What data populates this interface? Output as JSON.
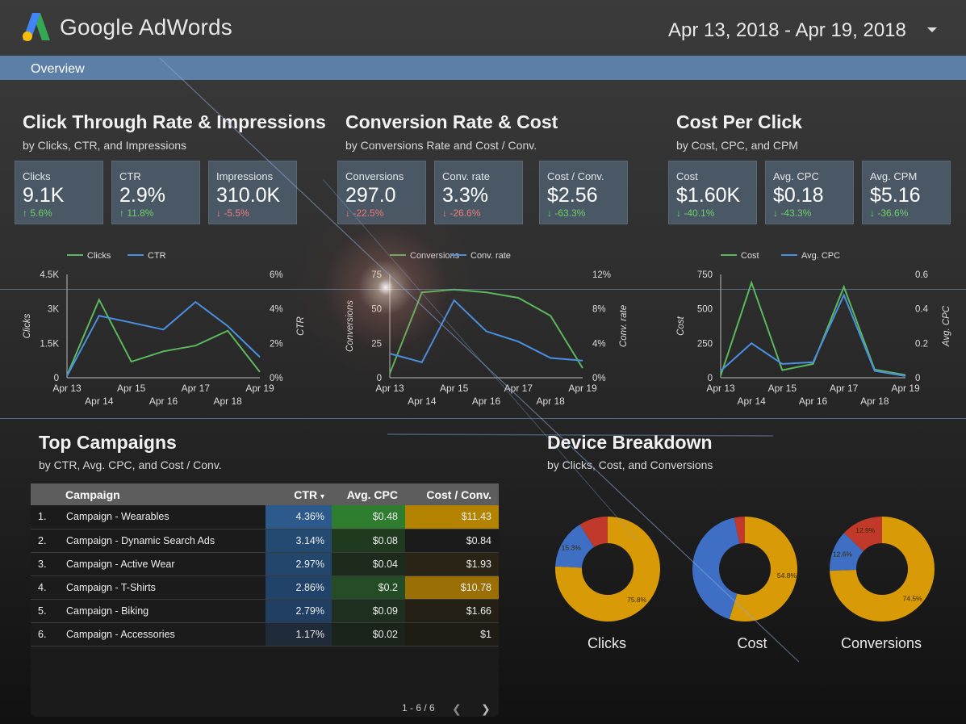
{
  "header": {
    "brand": "Google AdWords",
    "date_range": "Apr 13, 2018 - Apr 19, 2018"
  },
  "nav": {
    "tab": "Overview"
  },
  "sections": {
    "ctr": {
      "title": "Click Through Rate & Impressions",
      "subtitle": "by Clicks, CTR, and Impressions"
    },
    "conv": {
      "title": "Conversion Rate & Cost",
      "subtitle": "by Conversions Rate and Cost / Conv."
    },
    "cpc": {
      "title": "Cost Per Click",
      "subtitle": "by Cost, CPC, and CPM"
    },
    "campaigns": {
      "title": "Top Campaigns",
      "subtitle": "by CTR, Avg. CPC, and Cost / Conv."
    },
    "device": {
      "title": "Device Breakdown",
      "subtitle": "by Clicks, Cost, and Conversions"
    }
  },
  "kpis": [
    {
      "label": "Clicks",
      "value": "9.1K",
      "change": "5.6%",
      "dir": "up"
    },
    {
      "label": "CTR",
      "value": "2.9%",
      "change": "11.8%",
      "dir": "up"
    },
    {
      "label": "Impressions",
      "value": "310.0K",
      "change": "-5.5%",
      "dir": "down"
    },
    {
      "label": "Conversions",
      "value": "297.0",
      "change": "-22.5%",
      "dir": "down"
    },
    {
      "label": "Conv. rate",
      "value": "3.3%",
      "change": "-26.6%",
      "dir": "down"
    },
    {
      "label": "Cost / Conv.",
      "value": "$2.56",
      "change": "-63.3%",
      "dir": "good"
    },
    {
      "label": "Cost",
      "value": "$1.60K",
      "change": "-40.1%",
      "dir": "good"
    },
    {
      "label": "Avg. CPC",
      "value": "$0.18",
      "change": "-43.3%",
      "dir": "good"
    },
    {
      "label": "Avg. CPM",
      "value": "$5.16",
      "change": "-36.6%",
      "dir": "good"
    }
  ],
  "chart_data": [
    {
      "type": "line",
      "x": [
        "Apr 13",
        "Apr 14",
        "Apr 15",
        "Apr 16",
        "Apr 17",
        "Apr 18",
        "Apr 19"
      ],
      "series": [
        {
          "name": "Clicks",
          "axis": "left",
          "color": "#5cb85c",
          "values": [
            100,
            3400,
            700,
            1150,
            1400,
            2050,
            250
          ]
        },
        {
          "name": "CTR",
          "axis": "right",
          "color": "#4a90e2",
          "values": [
            0.1,
            3.6,
            3.2,
            2.8,
            4.4,
            3.0,
            1.2
          ]
        }
      ],
      "ylabel": "Clicks",
      "ylim": [
        0,
        4500
      ],
      "yticks": [
        "0",
        "1.5K",
        "3K",
        "4.5K"
      ],
      "y2label": "CTR",
      "y2lim": [
        0,
        6
      ],
      "y2ticks": [
        "0%",
        "2%",
        "4%",
        "6%"
      ]
    },
    {
      "type": "line",
      "x": [
        "Apr 13",
        "Apr 14",
        "Apr 15",
        "Apr 16",
        "Apr 17",
        "Apr 18",
        "Apr 19"
      ],
      "series": [
        {
          "name": "Conversions",
          "axis": "left",
          "color": "#5cb85c",
          "values": [
            3,
            62,
            64,
            62,
            58,
            45,
            7
          ]
        },
        {
          "name": "Conv. rate",
          "axis": "right",
          "color": "#4a90e2",
          "values": [
            2.8,
            1.8,
            9.0,
            5.4,
            4.2,
            2.3,
            2.0
          ]
        }
      ],
      "ylabel": "Conversions",
      "ylim": [
        0,
        75
      ],
      "yticks": [
        "0",
        "25",
        "50",
        "75"
      ],
      "y2label": "Conv. rate",
      "y2lim": [
        0,
        12
      ],
      "y2ticks": [
        "0%",
        "4%",
        "8%",
        "12%"
      ]
    },
    {
      "type": "line",
      "x": [
        "Apr 13",
        "Apr 14",
        "Apr 15",
        "Apr 16",
        "Apr 17",
        "Apr 18",
        "Apr 19"
      ],
      "series": [
        {
          "name": "Cost",
          "axis": "left",
          "color": "#5cb85c",
          "values": [
            15,
            690,
            55,
            100,
            660,
            60,
            20
          ]
        },
        {
          "name": "Avg. CPC",
          "axis": "right",
          "color": "#4a90e2",
          "values": [
            0.04,
            0.2,
            0.08,
            0.09,
            0.48,
            0.04,
            0.01
          ]
        }
      ],
      "ylabel": "Cost",
      "ylim": [
        0,
        750
      ],
      "yticks": [
        "0",
        "250",
        "500",
        "750"
      ],
      "y2label": "Avg. CPC",
      "y2lim": [
        0,
        0.6
      ],
      "y2ticks": [
        "0",
        "0.2",
        "0.4",
        "0.6"
      ]
    },
    {
      "type": "pie",
      "name": "Clicks",
      "slices": [
        {
          "value": 75.8,
          "color": "#d89a06",
          "label": "75.8%"
        },
        {
          "value": 15.3,
          "color": "#3e6fc4",
          "label": "15.3%"
        },
        {
          "value": 8.9,
          "color": "#c0392b",
          "label": ""
        }
      ]
    },
    {
      "type": "pie",
      "name": "Cost",
      "slices": [
        {
          "value": 54.8,
          "color": "#d89a06",
          "label": "54.8%"
        },
        {
          "value": 41.9,
          "color": "#3e6fc4",
          "label": ""
        },
        {
          "value": 3.3,
          "color": "#c0392b",
          "label": ""
        }
      ]
    },
    {
      "type": "pie",
      "name": "Conversions",
      "slices": [
        {
          "value": 74.5,
          "color": "#d89a06",
          "label": "74.5%"
        },
        {
          "value": 12.6,
          "color": "#3e6fc4",
          "label": "12.6%"
        },
        {
          "value": 12.9,
          "color": "#c0392b",
          "label": "12.9%"
        }
      ]
    }
  ],
  "campaign_table": {
    "headers": {
      "campaign": "Campaign",
      "ctr": "CTR",
      "cpc": "Avg. CPC",
      "cost_conv": "Cost / Conv.",
      "sort_indicator": "▾"
    },
    "rows": [
      {
        "num": "1.",
        "campaign": "Campaign - Wearables",
        "ctr": "4.36%",
        "cpc": "$0.48",
        "cost_conv": "$11.43",
        "ctr_bg": "#2c5a8c",
        "cpc_bg": "#2f7d2f",
        "cost_bg": "#b38300"
      },
      {
        "num": "2.",
        "campaign": "Campaign - Dynamic Search Ads",
        "ctr": "3.14%",
        "cpc": "$0.08",
        "cost_conv": "$0.84",
        "ctr_bg": "#244a72",
        "cpc_bg": "#1f3a1f",
        "cost_bg": "#1b1b1b"
      },
      {
        "num": "3.",
        "campaign": "Campaign - Active Wear",
        "ctr": "2.97%",
        "cpc": "$0.04",
        "cost_conv": "$1.93",
        "ctr_bg": "#22466c",
        "cpc_bg": "#1c2b1c",
        "cost_bg": "#2a2416"
      },
      {
        "num": "4.",
        "campaign": "Campaign - T-Shirts",
        "ctr": "2.86%",
        "cpc": "$0.2",
        "cost_conv": "$10.78",
        "ctr_bg": "#21436a",
        "cpc_bg": "#254d25",
        "cost_bg": "#9a7006"
      },
      {
        "num": "5.",
        "campaign": "Campaign - Biking",
        "ctr": "2.79%",
        "cpc": "$0.09",
        "cost_conv": "$1.66",
        "ctr_bg": "#203f62",
        "cpc_bg": "#1f2f1f",
        "cost_bg": "#252015"
      },
      {
        "num": "6.",
        "campaign": "Campaign - Accessories",
        "ctr": "1.17%",
        "cpc": "$0.02",
        "cost_conv": "$1",
        "ctr_bg": "#1f2b38",
        "cpc_bg": "#1b241b",
        "cost_bg": "#1f1c15"
      }
    ],
    "pager": "1 - 6 / 6"
  },
  "icons": {
    "prev": "chevron-left-icon",
    "next": "chevron-right-icon",
    "caret": "caret-down-icon",
    "arrow_up": "arrow-up-icon",
    "arrow_down": "arrow-down-icon"
  }
}
